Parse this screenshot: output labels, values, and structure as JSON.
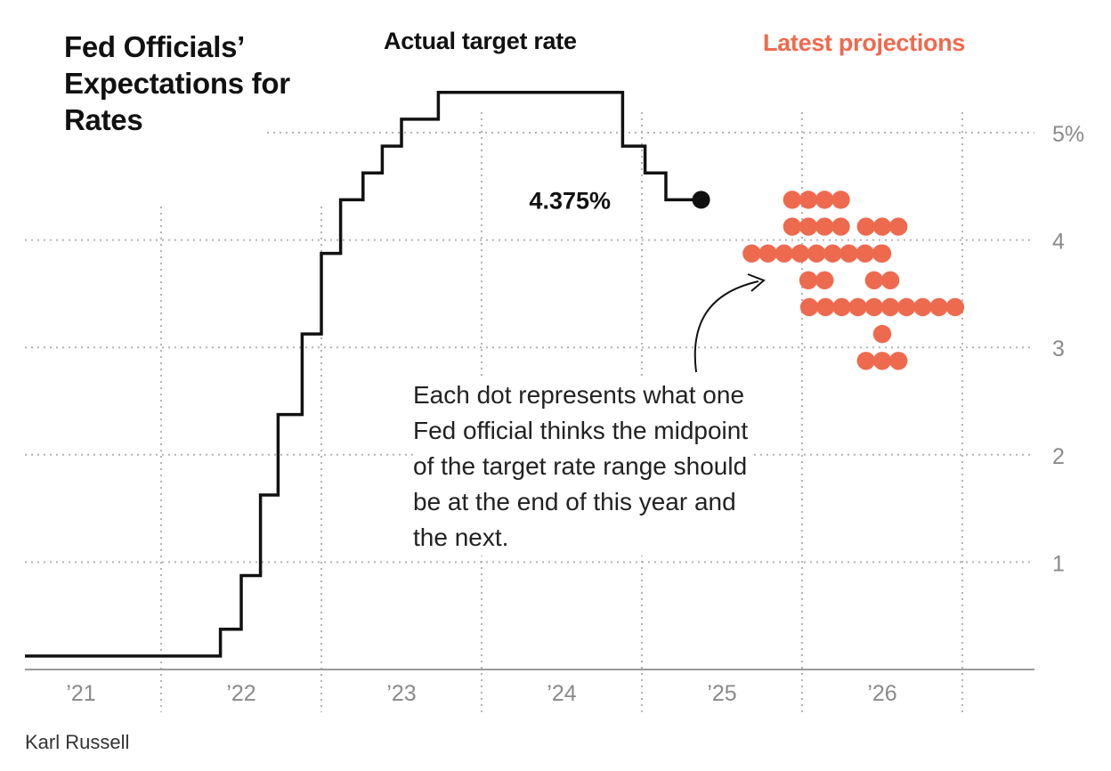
{
  "title": "Fed Officials’ Expectations for Rates",
  "credit": "Karl Russell",
  "labels": {
    "actual": "Actual target rate",
    "projections": "Latest projections",
    "current_value": "4.375%"
  },
  "note": "Each dot represents what one Fed official thinks the midpoint of the target rate range should be at the end of this year and the next.",
  "colors": {
    "line": "#111111",
    "dots": "#ee6a4e",
    "grid": "#b3b3b3",
    "axis_text": "#8a8a8a"
  },
  "chart_data": {
    "type": "line",
    "title": "Fed Officials’ Expectations for Rates",
    "ylim": [
      0,
      5.5
    ],
    "y_ticks": [
      {
        "value": 1,
        "label": "1"
      },
      {
        "value": 2,
        "label": "2"
      },
      {
        "value": 3,
        "label": "3"
      },
      {
        "value": 4,
        "label": "4"
      },
      {
        "value": 5,
        "label": "5%"
      }
    ],
    "x_ticks": [
      {
        "value": 2021.0,
        "label": "’21"
      },
      {
        "value": 2022.0,
        "label": "’22"
      },
      {
        "value": 2023.0,
        "label": "’23"
      },
      {
        "value": 2024.0,
        "label": "’24"
      },
      {
        "value": 2025.0,
        "label": "’25"
      },
      {
        "value": 2026.0,
        "label": "’26"
      }
    ],
    "xlim": [
      2020.65,
      2026.95
    ],
    "grid": true,
    "actual_target_rate": {
      "name": "Actual target rate",
      "steps": [
        {
          "x": 2020.65,
          "y": 0.125
        },
        {
          "x": 2021.87,
          "y": 0.375
        },
        {
          "x": 2022.0,
          "y": 0.875
        },
        {
          "x": 2022.12,
          "y": 1.625
        },
        {
          "x": 2022.23,
          "y": 2.375
        },
        {
          "x": 2022.38,
          "y": 3.125
        },
        {
          "x": 2022.5,
          "y": 3.875
        },
        {
          "x": 2022.62,
          "y": 4.375
        },
        {
          "x": 2022.76,
          "y": 4.625
        },
        {
          "x": 2022.88,
          "y": 4.875
        },
        {
          "x": 2023.0,
          "y": 5.125
        },
        {
          "x": 2023.23,
          "y": 5.375
        },
        {
          "x": 2024.38,
          "y": 4.875
        },
        {
          "x": 2024.52,
          "y": 4.625
        },
        {
          "x": 2024.65,
          "y": 4.375
        }
      ],
      "end_x": 2024.87,
      "end_value": 4.375
    },
    "projections": [
      {
        "year_label": "’25",
        "x_center": 2025.59,
        "dots": [
          {
            "value": 4.375,
            "count": 4
          },
          {
            "value": 4.125,
            "count": 4
          },
          {
            "value": 3.875,
            "count": 9
          },
          {
            "value": 3.625,
            "count": 2
          }
        ]
      },
      {
        "year_label": "’26",
        "x_center": 2026.0,
        "dots": [
          {
            "value": 4.125,
            "count": 3
          },
          {
            "value": 3.875,
            "count": 1
          },
          {
            "value": 3.625,
            "count": 2
          },
          {
            "value": 3.375,
            "count": 10
          },
          {
            "value": 3.125,
            "count": 1
          },
          {
            "value": 2.875,
            "count": 3
          }
        ]
      }
    ]
  }
}
